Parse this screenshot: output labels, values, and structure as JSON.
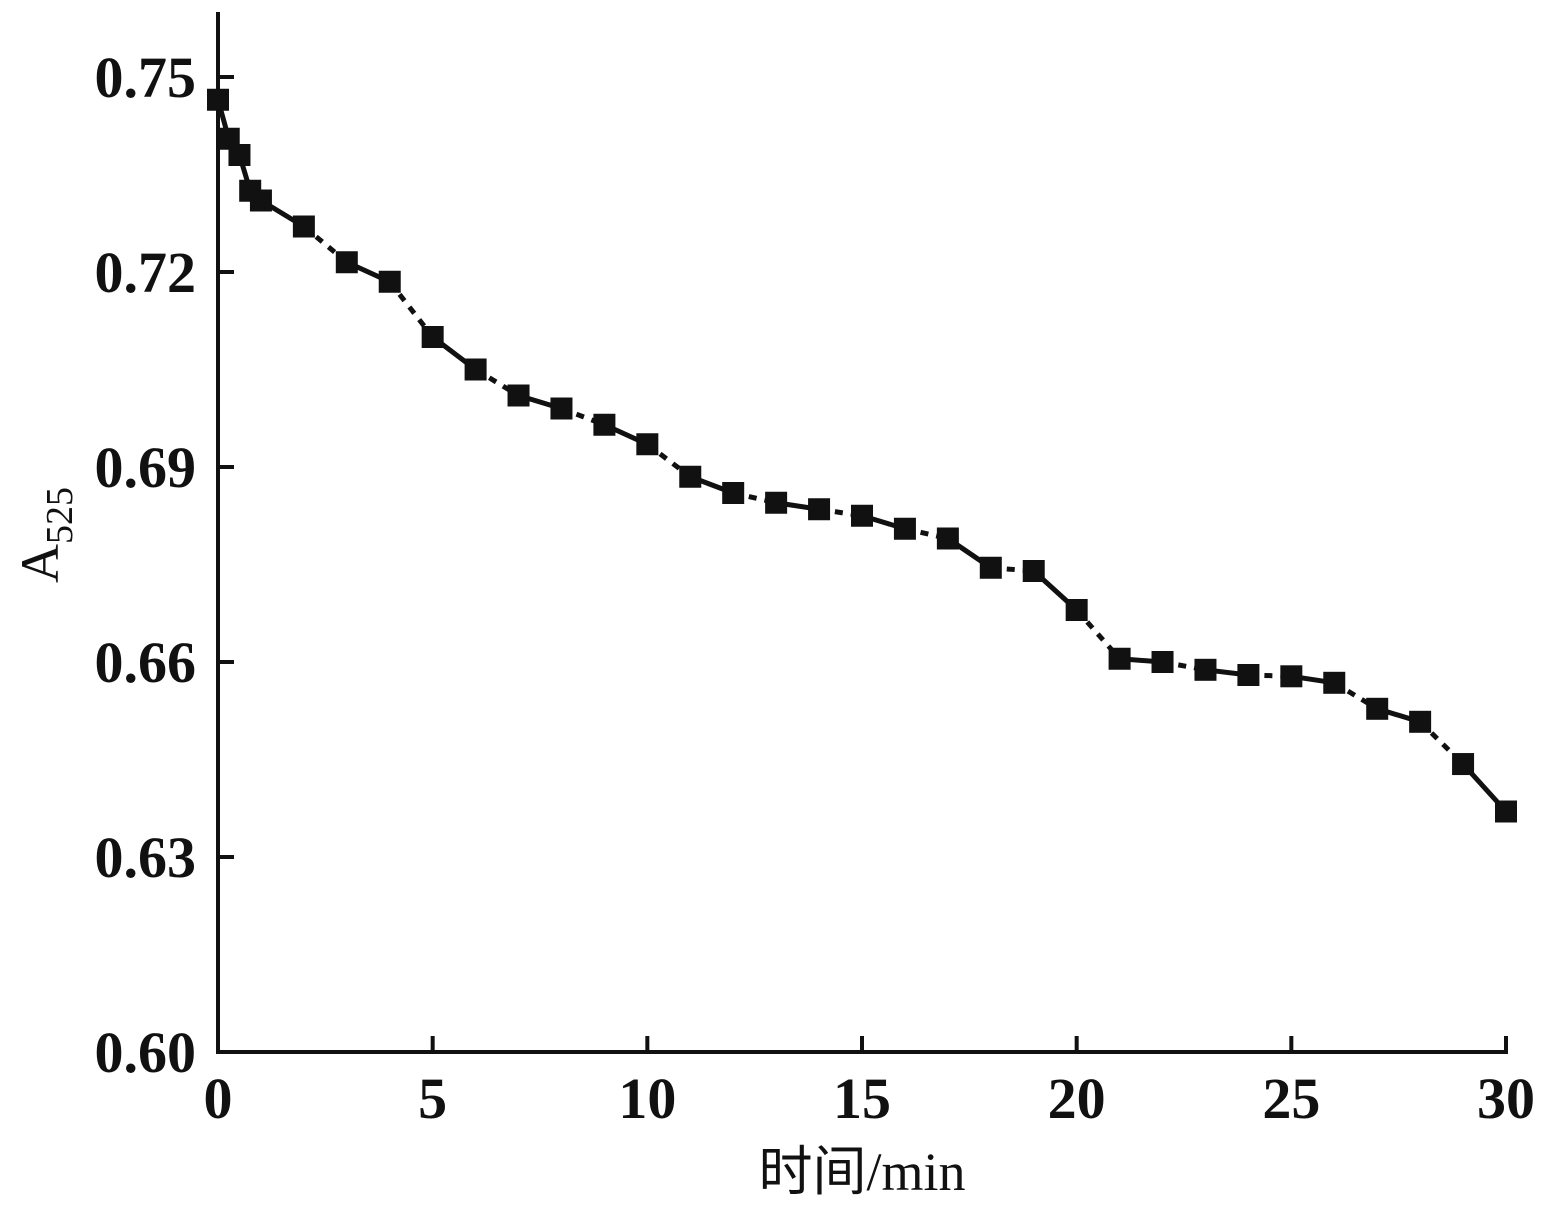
{
  "chart_data": {
    "type": "line",
    "xlabel": "时间/min",
    "ylabel_main": "A",
    "ylabel_sub": "525",
    "xlim": [
      0,
      30
    ],
    "ylim": [
      0.6,
      0.76
    ],
    "x_ticks": [
      "0",
      "5",
      "10",
      "15",
      "20",
      "25",
      "30"
    ],
    "x_tick_values": [
      0,
      5,
      10,
      15,
      20,
      25,
      30
    ],
    "y_ticks": [
      "0.60",
      "0.63",
      "0.66",
      "0.69",
      "0.72",
      "0.75"
    ],
    "y_tick_values": [
      0.6,
      0.63,
      0.66,
      0.69,
      0.72,
      0.75
    ],
    "grid": false,
    "marker": "square",
    "color": "#111111",
    "series": [
      {
        "x": [
          0,
          0.25,
          0.5,
          0.75,
          1,
          2,
          3,
          4,
          5,
          6,
          7,
          8,
          9,
          10,
          11,
          12,
          13,
          14,
          15,
          16,
          17,
          18,
          19,
          20,
          21,
          22,
          23,
          24,
          25,
          26,
          27,
          28,
          29,
          30
        ],
        "y": [
          0.7465,
          0.7405,
          0.738,
          0.7325,
          0.731,
          0.727,
          0.7215,
          0.7185,
          0.71,
          0.705,
          0.701,
          0.699,
          0.6965,
          0.6935,
          0.6885,
          0.686,
          0.6845,
          0.6835,
          0.6825,
          0.6805,
          0.679,
          0.6745,
          0.674,
          0.668,
          0.6605,
          0.66,
          0.6588,
          0.658,
          0.6578,
          0.6568,
          0.6528,
          0.6508,
          0.6443,
          0.637
        ]
      }
    ]
  }
}
